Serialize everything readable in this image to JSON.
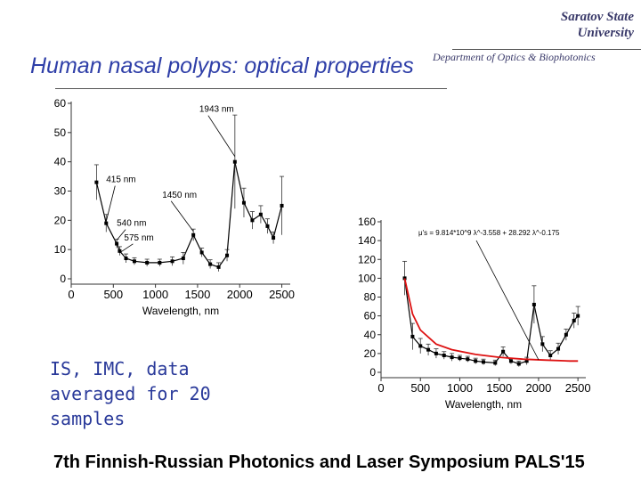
{
  "header": {
    "university_line1": "Saratov State",
    "university_line2": "University",
    "department": "Department of Optics & Biophotonics"
  },
  "slide": {
    "title": "Human nasal polyps: optical properties",
    "note": "IS, IMC, data averaged for 20 samples",
    "footer": "7th Finnish-Russian Photonics and Laser Symposium PALS'15"
  },
  "chart_data": [
    {
      "type": "line",
      "xlabel": "Wavelength, nm",
      "ylabel": "",
      "xlim": [
        0,
        2600
      ],
      "ylim": [
        0,
        60
      ],
      "xticks": [
        0,
        500,
        1000,
        1500,
        2000,
        2500
      ],
      "yticks": [
        0,
        10,
        20,
        30,
        40,
        50,
        60
      ],
      "grid": false,
      "series": [
        {
          "x": [
            300,
            415,
            540,
            575,
            650,
            750,
            900,
            1050,
            1200,
            1330,
            1450,
            1550,
            1650,
            1750,
            1850,
            1943,
            2050,
            2150,
            2250,
            2330,
            2400,
            2500
          ],
          "y": [
            33,
            19,
            12,
            9.5,
            7,
            6,
            5.5,
            5.5,
            6,
            7,
            15,
            9,
            5,
            4,
            8,
            40,
            26,
            20,
            22,
            18,
            14,
            25
          ],
          "errors": [
            6,
            3,
            1.5,
            1.5,
            1.5,
            1.2,
            1.2,
            1.2,
            1.5,
            2,
            2,
            1.5,
            1.5,
            1.5,
            2,
            16,
            5,
            3,
            3,
            2.5,
            2,
            10
          ],
          "color": "#000000"
        }
      ],
      "annotations": [
        {
          "text": "415 nm",
          "x": 415,
          "y": 19
        },
        {
          "text": "540 nm",
          "x": 540,
          "y": 12
        },
        {
          "text": "575 nm",
          "x": 575,
          "y": 9.5
        },
        {
          "text": "1450 nm",
          "x": 1450,
          "y": 15
        },
        {
          "text": "1943 nm",
          "x": 1943,
          "y": 40
        }
      ]
    },
    {
      "type": "line",
      "xlabel": "Wavelength, nm",
      "ylabel": "",
      "xlim": [
        0,
        2600
      ],
      "ylim": [
        0,
        160
      ],
      "xticks": [
        0,
        500,
        1000,
        1500,
        2000,
        2500
      ],
      "yticks": [
        0,
        20,
        40,
        60,
        80,
        100,
        120,
        140,
        160
      ],
      "grid": false,
      "series": [
        {
          "x": [
            300,
            400,
            500,
            600,
            700,
            800,
            900,
            1000,
            1100,
            1200,
            1300,
            1450,
            1550,
            1650,
            1750,
            1850,
            1943,
            2050,
            2150,
            2250,
            2350,
            2450,
            2500
          ],
          "y": [
            100,
            38,
            28,
            24,
            20,
            18,
            16,
            15,
            14,
            12,
            11,
            10,
            22,
            12,
            9,
            12,
            72,
            30,
            18,
            25,
            40,
            55,
            60
          ],
          "errors": [
            18,
            14,
            8,
            6,
            5,
            4,
            4,
            3,
            3,
            3,
            3,
            3,
            5,
            3,
            3,
            4,
            20,
            8,
            5,
            6,
            6,
            8,
            10
          ],
          "color": "#000000"
        },
        {
          "x": [
            300,
            400,
            500,
            700,
            900,
            1200,
            1500,
            1800,
            2100,
            2400,
            2500
          ],
          "y": [
            100,
            62,
            45,
            30,
            24,
            19,
            16,
            14,
            13,
            12,
            12
          ],
          "color": "#dd1111"
        }
      ],
      "formula": "μ's = 9.814*10^9 λ^-3.558 + 28.292 λ^-0.175"
    }
  ]
}
